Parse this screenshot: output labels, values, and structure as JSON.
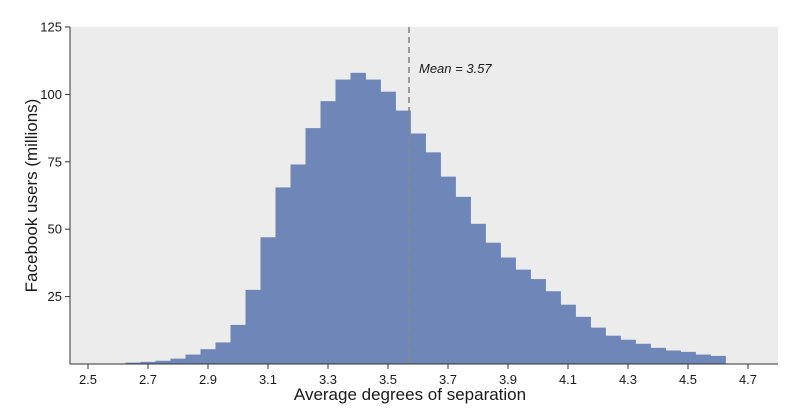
{
  "chart_data": {
    "type": "bar",
    "title": "",
    "xlabel": "Average degrees of separation",
    "ylabel": "Facebook users (millions)",
    "xlim": [
      2.44,
      4.8
    ],
    "ylim": [
      0,
      125
    ],
    "bin_width": 0.05,
    "x": [
      2.65,
      2.7,
      2.75,
      2.8,
      2.85,
      2.9,
      2.95,
      3.0,
      3.05,
      3.1,
      3.15,
      3.2,
      3.25,
      3.3,
      3.35,
      3.4,
      3.45,
      3.5,
      3.55,
      3.6,
      3.65,
      3.7,
      3.75,
      3.8,
      3.85,
      3.9,
      3.95,
      4.0,
      4.05,
      4.1,
      4.15,
      4.2,
      4.25,
      4.3,
      4.35,
      4.4,
      4.45,
      4.5,
      4.55,
      4.6
    ],
    "values": [
      0.5,
      0.8,
      1.2,
      2,
      3.5,
      5.5,
      8,
      14.5,
      27.5,
      47,
      65.5,
      74,
      87.5,
      97.5,
      105.5,
      108,
      105.5,
      101,
      94,
      85.5,
      78.5,
      69.5,
      62,
      52,
      45,
      39.5,
      35,
      31.5,
      27,
      22,
      17.5,
      13.5,
      10.5,
      9,
      7.5,
      6,
      5,
      4.5,
      3.5,
      3
    ],
    "xticks": [
      "2.5",
      "2.7",
      "2.9",
      "3.1",
      "3.3",
      "3.5",
      "3.7",
      "3.9",
      "4.1",
      "4.3",
      "4.5",
      "4.7"
    ],
    "yticks": [
      "25",
      "50",
      "75",
      "100",
      "125"
    ],
    "mean_line": {
      "value": 3.57,
      "label": "Mean = 3.57"
    },
    "grid": false,
    "colors": {
      "bar": "#6e86b8",
      "panel": "#ececec",
      "mean_line": "#888888",
      "axis": "#333333"
    }
  }
}
